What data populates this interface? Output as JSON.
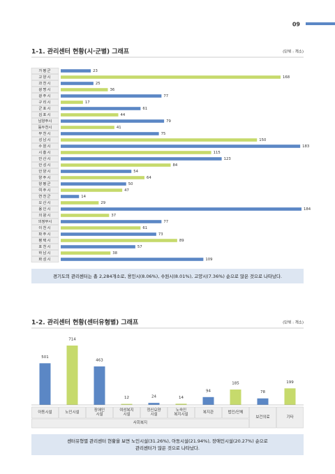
{
  "page_number": "09",
  "chart_data": [
    {
      "type": "hbar",
      "title": "1-1. 관리센터 현황(시·군별) 그래프",
      "unit": "(단위 : 개소)",
      "categories": [
        "가평군",
        "고양시",
        "과천시",
        "광명시",
        "광주시",
        "구리시",
        "군포시",
        "김포시",
        "남양주시",
        "동두천시",
        "부천시",
        "성남시",
        "수원시",
        "시흥시",
        "안산시",
        "안성시",
        "안양시",
        "양주시",
        "양평군",
        "여주시",
        "연천군",
        "오산시",
        "용인시",
        "의왕시",
        "의정부시",
        "이천시",
        "파주시",
        "평택시",
        "포천시",
        "하남시",
        "화성시"
      ],
      "values": [
        23,
        168,
        25,
        36,
        77,
        17,
        61,
        44,
        79,
        41,
        75,
        150,
        183,
        115,
        123,
        84,
        54,
        64,
        50,
        47,
        14,
        29,
        184,
        37,
        77,
        61,
        73,
        89,
        57,
        38,
        109
      ],
      "colors": [
        "#5b87c5",
        "#c6da6c"
      ],
      "note": "경기도의 관리센터는 총 2,284개소로, 용인시(8.06%), 수원시(8.01%), 고양시(7.36%) 순으로 많은 것으로 나타났다."
    },
    {
      "type": "bar",
      "title": "1-2. 관리센터 현황(센터유형별) 그래프",
      "unit": "(단위 : 개소)",
      "categories": [
        "아동시설",
        "노인시설",
        "장애인\n시설",
        "여성복지\n시설",
        "정신요양\n시설",
        "노숙인\n복지시설",
        "복지관",
        "법인/단체",
        "보건의료",
        "기타"
      ],
      "groups": [
        "사회복지",
        "사회복지",
        "사회복지",
        "사회복지",
        "사회복지",
        "사회복지",
        "사회복지",
        "사회복지",
        null,
        null
      ],
      "values": [
        501,
        714,
        463,
        12,
        24,
        14,
        94,
        185,
        78,
        199
      ],
      "colors": [
        "#5b87c5",
        "#c6da6c"
      ],
      "note": "센터유형별 관리센터 현황을 보면 노인시설(31.26%), 아동시설(21.94%), 장애인시설(20.27%) 순으로\n관리센터가 많은 것으로 나타났다."
    }
  ]
}
